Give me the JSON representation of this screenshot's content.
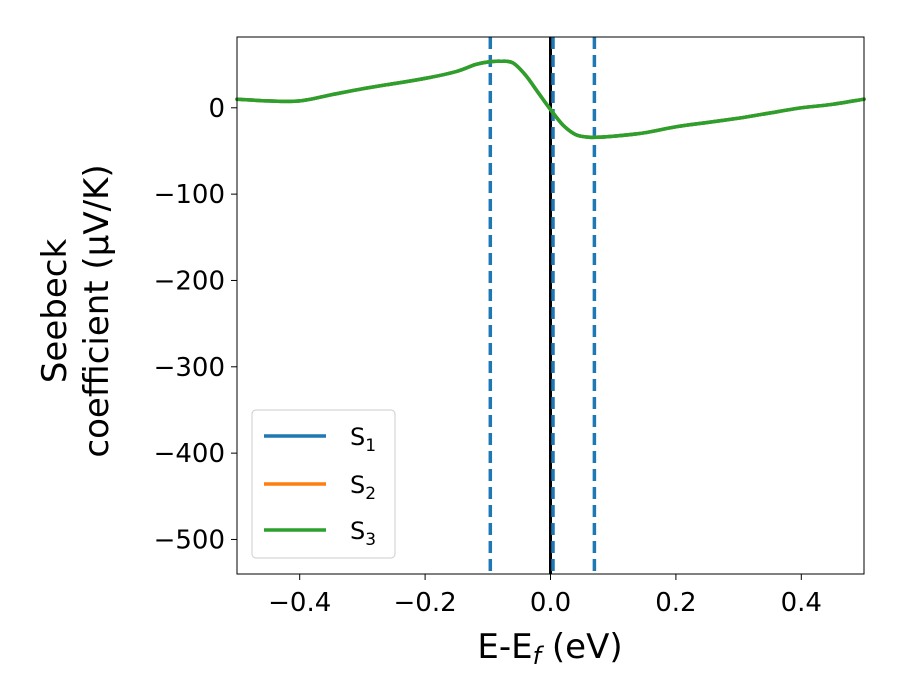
{
  "chart_data": {
    "type": "line",
    "xlabel": {
      "main": "E-E",
      "sub": "f",
      "unit": " (eV)"
    },
    "ylabel": {
      "line1": "Seebeck",
      "line2": "coefficient  (μV/K)"
    },
    "xlim": [
      -0.5,
      0.5
    ],
    "ylim": [
      -540,
      82
    ],
    "xticks": [
      -0.4,
      -0.2,
      0.0,
      0.2,
      0.4
    ],
    "xtick_labels": [
      "−0.4",
      "−0.2",
      "0.0",
      "0.2",
      "0.4"
    ],
    "yticks": [
      0,
      -100,
      -200,
      -300,
      -400,
      -500
    ],
    "ytick_labels": [
      "0",
      "−100",
      "−200",
      "−300",
      "−400",
      "−500"
    ],
    "grid": false,
    "legend_position": "lower-left",
    "x": [
      -0.5,
      -0.45,
      -0.4,
      -0.35,
      -0.3,
      -0.25,
      -0.2,
      -0.15,
      -0.12,
      -0.1,
      -0.08,
      -0.06,
      -0.04,
      -0.02,
      0.0,
      0.02,
      0.04,
      0.06,
      0.08,
      0.1,
      0.15,
      0.2,
      0.25,
      0.3,
      0.35,
      0.4,
      0.45,
      0.5
    ],
    "series": [
      {
        "name": "S",
        "sub": "1",
        "color": "#1f77b4",
        "values": [
          10,
          8,
          8,
          15,
          22,
          28,
          34,
          42,
          50,
          53,
          54,
          52,
          38,
          18,
          -2,
          -20,
          -31,
          -34,
          -34,
          -33,
          -29,
          -22,
          -17,
          -12,
          -6,
          0,
          4,
          10
        ]
      },
      {
        "name": "S",
        "sub": "2",
        "color": "#ff7f0e",
        "values": [
          10,
          8,
          8,
          15,
          22,
          28,
          34,
          42,
          50,
          53,
          54,
          52,
          38,
          18,
          -2,
          -20,
          -31,
          -34,
          -34,
          -33,
          -29,
          -22,
          -17,
          -12,
          -6,
          0,
          4,
          10
        ]
      },
      {
        "name": "S",
        "sub": "3",
        "color": "#2ca02c",
        "values": [
          10,
          8,
          8,
          15,
          22,
          28,
          34,
          42,
          50,
          53,
          54,
          52,
          38,
          18,
          -2,
          -20,
          -31,
          -34,
          -34,
          -33,
          -29,
          -22,
          -17,
          -12,
          -6,
          0,
          4,
          10
        ]
      }
    ],
    "vertical_lines": [
      {
        "x": -0.096,
        "style": "dashed",
        "color": "#1f77b4"
      },
      {
        "x": 0.0,
        "style": "solid",
        "color": "#000000"
      },
      {
        "x": 0.004,
        "style": "dashed",
        "color": "#1f77b4"
      },
      {
        "x": 0.07,
        "style": "dashed",
        "color": "#1f77b4"
      }
    ]
  }
}
